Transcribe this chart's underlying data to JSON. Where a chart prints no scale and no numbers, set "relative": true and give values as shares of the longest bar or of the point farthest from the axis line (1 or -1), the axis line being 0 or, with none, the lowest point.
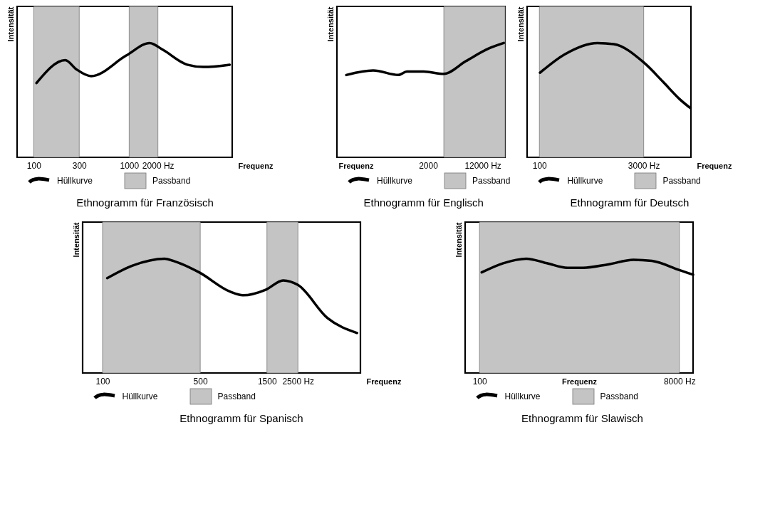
{
  "chart_data": [
    {
      "type": "line",
      "relative": true,
      "title": "Ethnogramm für Französisch",
      "xlabel": "Frequenz",
      "ylabel": "Intensität",
      "log": "x",
      "xlim": [
        67,
        12000
      ],
      "xticks": [
        100,
        300,
        1000,
        {
          "value": 2000,
          "label": "2000 Hz"
        }
      ],
      "tick_labels": "x",
      "legend": "bottom",
      "x": [
        107,
        214,
        280,
        400,
        930,
        1640,
        2260,
        4050,
        5970,
        11300
      ],
      "series": [
        {
          "name": "Hüllkurve",
          "color": "#000000",
          "values": [
            0.65,
            0.85,
            0.77,
            0.71,
            0.89,
            1,
            0.94,
            0.81,
            0.79,
            0.81
          ]
        }
      ],
      "bands": [
        {
          "axis": "x",
          "from": 100,
          "to": 300,
          "label": "Passband",
          "color": "#c4c4c4"
        },
        {
          "axis": "x",
          "from": 1000,
          "to": 2000,
          "color": "#c4c4c4"
        }
      ]
    },
    {
      "type": "line",
      "relative": true,
      "title": "Ethnogramm für Englisch",
      "xlabel": "Frequenz",
      "ylabel": "Intensität",
      "log": "x",
      "xlim": [
        100,
        25000
      ],
      "xticks": [
        2000,
        {
          "value": 12000,
          "label": "12000 Hz"
        }
      ],
      "tick_labels": "x",
      "legend": "bottom",
      "x": [
        136,
        329,
        753,
        993,
        1730,
        3350,
        6870,
        14400,
        24000
      ],
      "series": [
        {
          "name": "Hüllkurve",
          "color": "#000000",
          "values": [
            0.72,
            0.76,
            0.72,
            0.75,
            0.75,
            0.73,
            0.84,
            0.95,
            1
          ]
        }
      ],
      "bands": [
        {
          "axis": "x",
          "from": 3350,
          "to": 25000,
          "label": "Passband",
          "color": "#c4c4c4"
        }
      ]
    },
    {
      "type": "line",
      "relative": true,
      "title": "Ethnogramm für Deutsch",
      "xlabel": "Frequenz",
      "ylabel": "Intensität",
      "log": "x",
      "xlim": [
        67,
        14000
      ],
      "xticks": [
        100,
        {
          "value": 3000,
          "label": "3000 Hz"
        }
      ],
      "tick_labels": "x",
      "legend": "bottom",
      "x": [
        102,
        227,
        663,
        1130,
        3000,
        5650,
        9640,
        13800
      ],
      "series": [
        {
          "name": "Hüllkurve",
          "color": "#000000",
          "values": [
            0.74,
            0.9,
            1,
            0.99,
            0.83,
            0.66,
            0.51,
            0.43
          ]
        }
      ],
      "bands": [
        {
          "axis": "x",
          "from": 100,
          "to": 3000,
          "label": "Passband",
          "color": "#c4c4c4"
        }
      ]
    },
    {
      "type": "line",
      "relative": true,
      "title": "Ethnogramm für Spanisch",
      "xlabel": "Frequenz",
      "ylabel": "Intensität",
      "log": "x",
      "xlim": [
        72,
        7000
      ],
      "xticks": [
        100,
        500,
        1500,
        {
          "value": 2500,
          "label": "2500 Hz"
        }
      ],
      "tick_labels": "x",
      "legend": "bottom",
      "x": [
        108,
        164,
        278,
        322,
        491,
        822,
        1010,
        1480,
        1960,
        2500,
        4070,
        6620
      ],
      "series": [
        {
          "name": "Hüllkurve",
          "color": "#000000",
          "values": [
            0.83,
            0.94,
            1,
            0.98,
            0.88,
            0.71,
            0.68,
            0.73,
            0.81,
            0.77,
            0.48,
            0.35
          ]
        }
      ],
      "bands": [
        {
          "axis": "x",
          "from": 100,
          "to": 500,
          "label": "Passband",
          "color": "#c4c4c4"
        },
        {
          "axis": "x",
          "from": 1500,
          "to": 2500,
          "color": "#c4c4c4"
        }
      ]
    },
    {
      "type": "line",
      "relative": true,
      "title": "Ethnogramm für Slawisch",
      "xlabel": "Frequenz",
      "ylabel": "Intensität",
      "log": "x",
      "xlim": [
        73,
        10800
      ],
      "xticks": [
        100,
        {
          "value": 8000,
          "label": "8000 Hz"
        }
      ],
      "tick_labels": "x",
      "legend": "bottom",
      "x": [
        105,
        168,
        279,
        438,
        690,
        966,
        1680,
        2930,
        4390,
        8000,
        10800
      ],
      "series": [
        {
          "name": "Hüllkurve",
          "color": "#000000",
          "values": [
            0.88,
            0.96,
            1,
            0.96,
            0.92,
            0.92,
            0.95,
            0.99,
            0.98,
            0.9,
            0.86
          ]
        }
      ],
      "bands": [
        {
          "axis": "x",
          "from": 100,
          "to": 8000,
          "label": "Passband",
          "color": "#c4c4c4"
        }
      ]
    }
  ]
}
